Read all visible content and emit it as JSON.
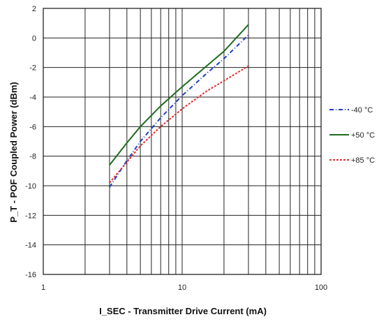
{
  "chart_data": {
    "type": "line",
    "xscale": "log",
    "xlim": [
      1,
      100
    ],
    "ylim": [
      -16,
      2
    ],
    "grid": true,
    "legend_position": "right",
    "xlabel": "I_SEC - Transmitter Drive Current (mA)",
    "ylabel": "P_T - POF Coupled Power (dBm)",
    "x_ticks": [
      "1",
      "10",
      "100"
    ],
    "y_ticks": [
      "2",
      "0",
      "-2",
      "-4",
      "-6",
      "-8",
      "-10",
      "-12",
      "-14",
      "-16"
    ],
    "series": [
      {
        "name": "-40 °C",
        "color": "#1f3fbf",
        "dash": "6,3,1,3",
        "x": [
          3,
          4,
          5,
          7,
          10,
          15,
          20,
          30
        ],
        "y": [
          -10.1,
          -8.3,
          -7.0,
          -5.4,
          -3.9,
          -2.4,
          -1.4,
          0.2
        ]
      },
      {
        "name": "+50 °C",
        "color": "#1e6b1e",
        "dash": "",
        "x": [
          3,
          4,
          5,
          7,
          10,
          15,
          20,
          30
        ],
        "y": [
          -8.6,
          -7.1,
          -6.0,
          -4.6,
          -3.3,
          -1.9,
          -0.9,
          0.9
        ]
      },
      {
        "name": "+85 °C",
        "color": "#e03030",
        "dash": "3,2",
        "x": [
          3,
          4,
          5,
          7,
          10,
          15,
          20,
          30
        ],
        "y": [
          -9.8,
          -8.4,
          -7.3,
          -6.0,
          -4.8,
          -3.6,
          -2.9,
          -1.9
        ]
      }
    ]
  }
}
